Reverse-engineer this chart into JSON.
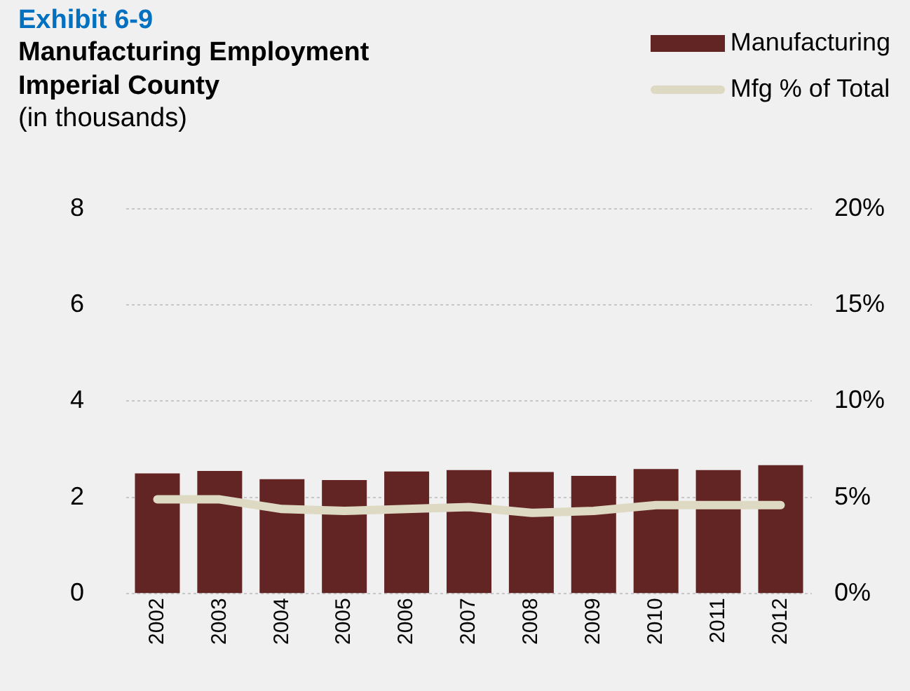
{
  "chart_data": {
    "type": "bar",
    "title": "Exhibit 6-9",
    "subtitle": "Manufacturing Employment\nImperial County",
    "ylabel": "(in thousands)",
    "categories": [
      "2002",
      "2003",
      "2004",
      "2005",
      "2006",
      "2007",
      "2008",
      "2009",
      "2010",
      "2011",
      "2012"
    ],
    "series": [
      {
        "name": "Manufacturing",
        "color": "#632523",
        "values": [
          2.5,
          2.55,
          2.38,
          2.36,
          2.54,
          2.57,
          2.53,
          2.45,
          2.59,
          2.57,
          2.67
        ]
      },
      {
        "name": "Mfg % of Total",
        "type": "line",
        "axis": "y2",
        "color": "#ddd9c3",
        "values": [
          4.9,
          4.9,
          4.4,
          4.3,
          4.4,
          4.5,
          4.2,
          4.3,
          4.6,
          4.6,
          4.6
        ]
      }
    ],
    "ylim": [
      0,
      8
    ],
    "yticks": [
      0,
      2,
      4,
      6,
      8
    ],
    "y2lim": [
      0,
      20
    ],
    "y2ticks": [
      {
        "value": 0,
        "label": "0%"
      },
      {
        "value": 5,
        "label": "5%"
      },
      {
        "value": 10,
        "label": "10%"
      },
      {
        "value": 15,
        "label": "15%"
      },
      {
        "value": 20,
        "label": "20%"
      }
    ],
    "grid": "y",
    "legend": "top right"
  }
}
